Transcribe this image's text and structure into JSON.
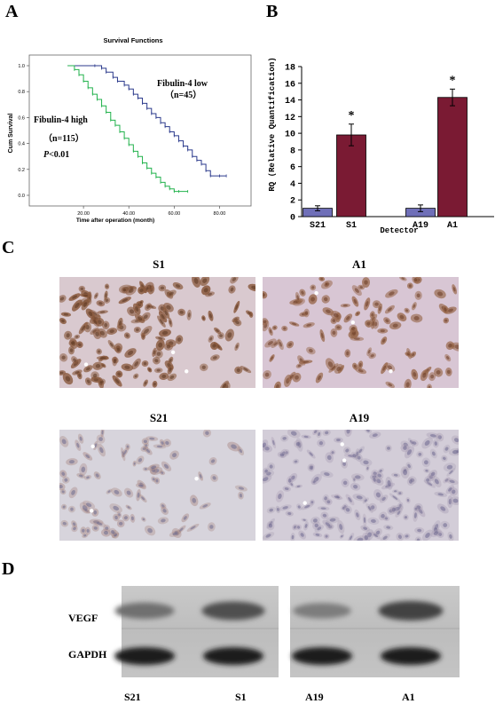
{
  "panels": {
    "a": "A",
    "b": "B",
    "c": "C",
    "d": "D"
  },
  "chart_data": [
    {
      "type": "line",
      "title": "Survival Functions",
      "xlabel": "Time after operation (month)",
      "ylabel": "Cum Survival",
      "xlim": [
        0,
        90
      ],
      "ylim": [
        0,
        1.0
      ],
      "x_ticks": [
        "20.00",
        "40.00",
        "60.00",
        "80.00"
      ],
      "y_ticks": [
        "0.0",
        "0.2",
        "0.4",
        "0.6",
        "0.8",
        "1.0"
      ],
      "annotations": {
        "low_label": "Fibulin-4 low",
        "low_n": "（n=45）",
        "high_label": "Fibulin-4 high",
        "high_n": "（n=115）",
        "p_italic": "P",
        "p_rest": "<0.01"
      },
      "series": [
        {
          "name": "Fibulin-4 low",
          "color": "#2b3a8c",
          "x": [
            13,
            25,
            28,
            30,
            33,
            35,
            38,
            40,
            42,
            44,
            46,
            48,
            50,
            52,
            54,
            56,
            58,
            60,
            62,
            64,
            66,
            68,
            70,
            72,
            74,
            76,
            80,
            83
          ],
          "y": [
            1.0,
            1.0,
            0.98,
            0.95,
            0.91,
            0.88,
            0.85,
            0.82,
            0.78,
            0.75,
            0.71,
            0.67,
            0.63,
            0.6,
            0.56,
            0.53,
            0.49,
            0.46,
            0.42,
            0.38,
            0.35,
            0.3,
            0.27,
            0.24,
            0.19,
            0.15,
            0.15,
            0.15
          ]
        },
        {
          "name": "Fibulin-4 high",
          "color": "#22b24c",
          "x": [
            13,
            16,
            18,
            20,
            22,
            24,
            26,
            28,
            30,
            32,
            34,
            36,
            38,
            40,
            42,
            44,
            46,
            48,
            50,
            52,
            54,
            56,
            58,
            60,
            62,
            66
          ],
          "y": [
            1.0,
            0.97,
            0.93,
            0.88,
            0.83,
            0.78,
            0.74,
            0.69,
            0.64,
            0.58,
            0.54,
            0.49,
            0.44,
            0.39,
            0.34,
            0.3,
            0.25,
            0.21,
            0.17,
            0.14,
            0.1,
            0.07,
            0.05,
            0.03,
            0.03,
            0.03
          ]
        }
      ]
    },
    {
      "type": "bar",
      "xlabel": "Detector",
      "ylabel": "RQ (Relative Quantification)",
      "ylim": [
        0,
        18
      ],
      "y_ticks": [
        "0",
        "2",
        "4",
        "6",
        "8",
        "10",
        "12",
        "14",
        "16",
        "18"
      ],
      "categories": [
        "S21",
        "S1",
        "A19",
        "A1"
      ],
      "values": [
        1.0,
        9.8,
        1.0,
        14.3
      ],
      "errors": [
        0.3,
        1.3,
        0.4,
        1.0
      ],
      "colors": [
        "#6f6fb8",
        "#7a1a33",
        "#6f6fb8",
        "#7a1a33"
      ],
      "significance": [
        "",
        "*",
        "",
        "*"
      ]
    }
  ],
  "micrographs": [
    {
      "label": "S1"
    },
    {
      "label": "A1"
    },
    {
      "label": "S21"
    },
    {
      "label": "A19"
    }
  ],
  "western_blot": {
    "rows": [
      "VEGF",
      "GAPDH"
    ],
    "lanes": [
      "S21",
      "S1",
      "A19",
      "A1"
    ],
    "vegf_intensity": [
      0.45,
      0.7,
      0.35,
      0.8
    ]
  }
}
